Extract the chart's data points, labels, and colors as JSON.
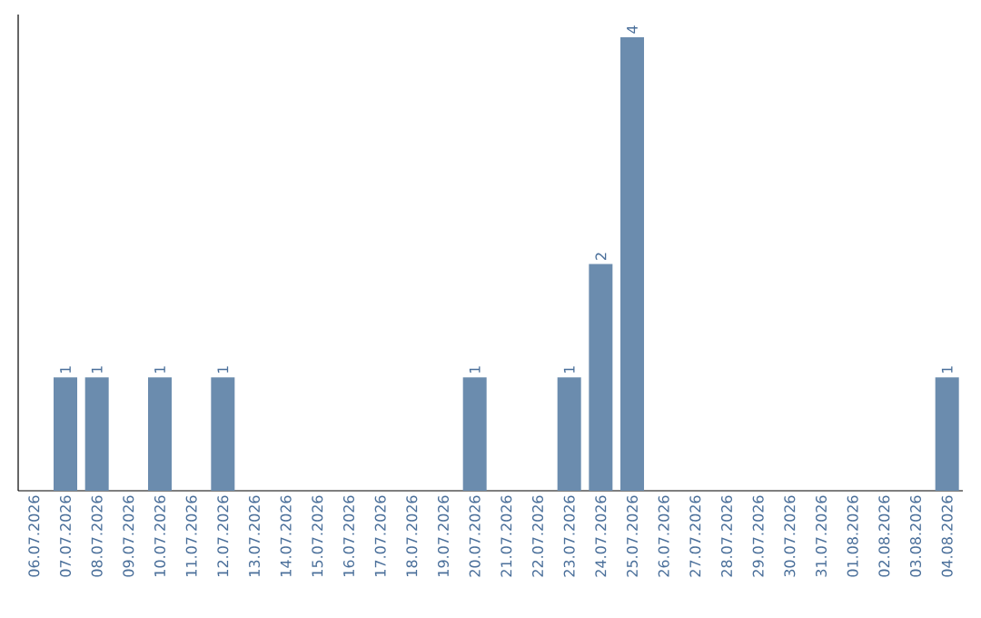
{
  "chart_data": {
    "type": "bar",
    "categories": [
      "06.07.2026",
      "07.07.2026",
      "08.07.2026",
      "09.07.2026",
      "10.07.2026",
      "11.07.2026",
      "12.07.2026",
      "13.07.2026",
      "14.07.2026",
      "15.07.2026",
      "16.07.2026",
      "17.07.2026",
      "18.07.2026",
      "19.07.2026",
      "20.07.2026",
      "21.07.2026",
      "22.07.2026",
      "23.07.2026",
      "24.07.2026",
      "25.07.2026",
      "26.07.2026",
      "27.07.2026",
      "28.07.2026",
      "29.07.2026",
      "30.07.2026",
      "31.07.2026",
      "01.08.2026",
      "02.08.2026",
      "03.08.2026",
      "04.08.2026"
    ],
    "values": [
      0,
      1,
      1,
      0,
      1,
      0,
      1,
      0,
      0,
      0,
      0,
      0,
      0,
      0,
      1,
      0,
      0,
      1,
      2,
      4,
      0,
      0,
      0,
      0,
      0,
      0,
      0,
      0,
      0,
      1
    ],
    "value_labels": [
      null,
      "1",
      "1",
      null,
      "1",
      null,
      "1",
      null,
      null,
      null,
      null,
      null,
      null,
      null,
      "1",
      null,
      null,
      "1",
      "2",
      "4",
      null,
      null,
      null,
      null,
      null,
      null,
      null,
      null,
      null,
      "1"
    ],
    "color": "#6b8cae",
    "tick_labels": "x"
  }
}
